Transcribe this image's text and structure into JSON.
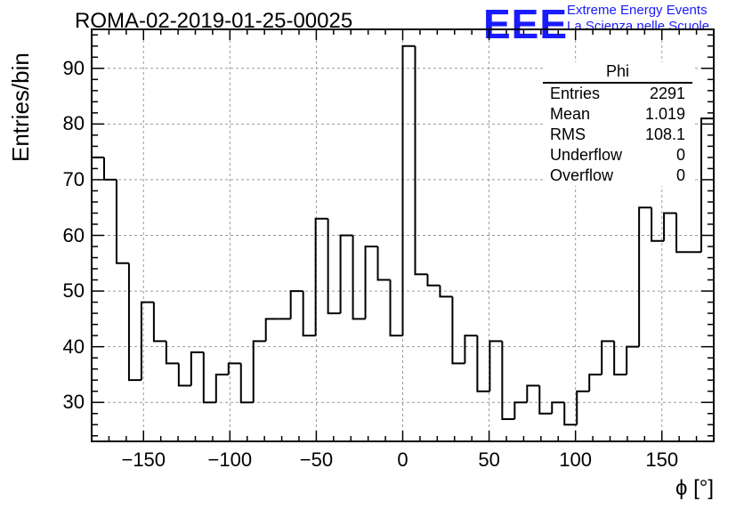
{
  "title": "ROMA-02-2019-01-25-00025",
  "logo": {
    "mark": "EEE",
    "line1": "Extreme Energy Events",
    "line2": "La Scienza nelle Scuole",
    "color": "#1a1aff"
  },
  "stats_box": {
    "name": "Phi",
    "rows": [
      {
        "label": "Entries",
        "value": "2291"
      },
      {
        "label": "Mean",
        "value": "1.019"
      },
      {
        "label": "RMS",
        "value": "108.1"
      },
      {
        "label": "Underflow",
        "value": "0"
      },
      {
        "label": "Overflow",
        "value": "0"
      }
    ]
  },
  "chart_data": {
    "type": "bar",
    "style": "step-histogram",
    "title": "ROMA-02-2019-01-25-00025",
    "xlabel": "ϕ [°]",
    "ylabel": "Entries/bin",
    "xlim": [
      -180,
      180
    ],
    "ylim": [
      23,
      97
    ],
    "bin_width": 7.2,
    "grid": true,
    "xticks": [
      -150,
      -100,
      -50,
      0,
      50,
      100,
      150
    ],
    "xtick_labels": [
      "−150",
      "−100",
      "−50",
      "0",
      "50",
      "100",
      "150"
    ],
    "yticks": [
      30,
      40,
      50,
      60,
      70,
      80,
      90
    ],
    "ytick_labels": [
      "30",
      "40",
      "50",
      "60",
      "70",
      "80",
      "90"
    ],
    "values": [
      74,
      70,
      55,
      34,
      48,
      41,
      37,
      33,
      39,
      30,
      35,
      37,
      30,
      41,
      45,
      45,
      50,
      42,
      63,
      46,
      60,
      45,
      58,
      52,
      42,
      94,
      53,
      51,
      49,
      37,
      42,
      32,
      41,
      27,
      30,
      33,
      28,
      30,
      26,
      32,
      35,
      41,
      35,
      40,
      65,
      59,
      64,
      57,
      57,
      81
    ]
  }
}
